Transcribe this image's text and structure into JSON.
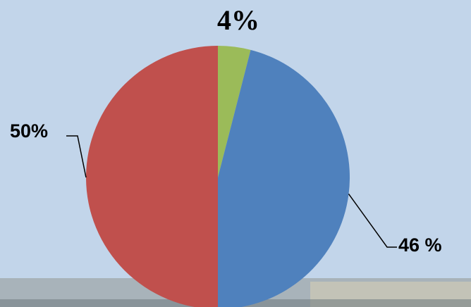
{
  "chart_data": {
    "type": "pie",
    "values": [
      4,
      46,
      50
    ],
    "labels": [
      "4%",
      "46 %",
      "50%"
    ],
    "colors": [
      "#9bbb59",
      "#4f81bd",
      "#c0504d"
    ],
    "start": "top",
    "direction": "clockwise",
    "legend": "none"
  },
  "colors": {
    "background": "#c2d5ea",
    "ground": "#8a8a80",
    "label": "#000000",
    "leader": "#000000"
  }
}
